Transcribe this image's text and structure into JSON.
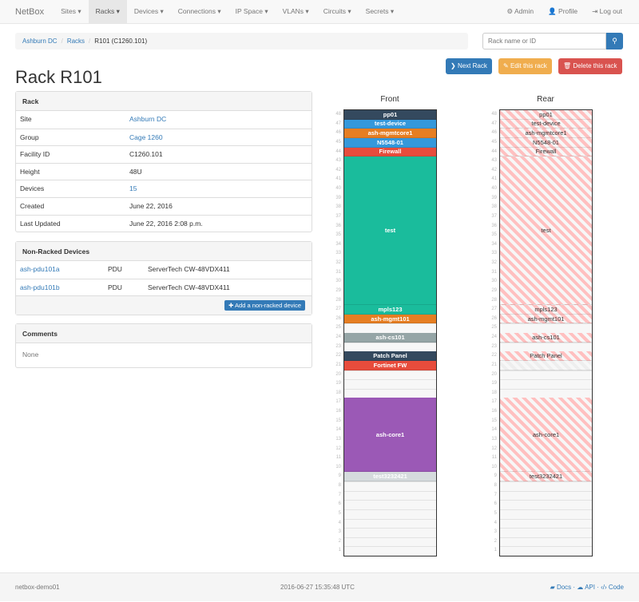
{
  "nav": {
    "brand": "NetBox",
    "items": [
      "Sites ▾",
      "Racks ▾",
      "Devices ▾",
      "Connections ▾",
      "IP Space ▾",
      "VLANs ▾",
      "Circuits ▾",
      "Secrets ▾"
    ],
    "active": 1,
    "admin": "Admin",
    "profile": "Profile",
    "logout": "Log out"
  },
  "breadcrumb": [
    "Ashburn DC",
    "Racks",
    "R101 (C1260.101)"
  ],
  "search": {
    "placeholder": "Rack name or ID"
  },
  "buttons": {
    "next": "Next Rack",
    "edit": "Edit this rack",
    "delete": "Delete this rack"
  },
  "colors": {
    "primary": "#337ab7",
    "warning": "#f0ad4e",
    "danger": "#d9534f"
  },
  "title": "Rack R101",
  "rack_panel": {
    "heading": "Rack",
    "rows": [
      {
        "label": "Site",
        "value": "Ashburn DC",
        "link": true
      },
      {
        "label": "Group",
        "value": "Cage 1260",
        "link": true
      },
      {
        "label": "Facility ID",
        "value": "C1260.101",
        "link": false
      },
      {
        "label": "Height",
        "value": "48U",
        "link": false
      },
      {
        "label": "Devices",
        "value": "15",
        "link": true
      },
      {
        "label": "Created",
        "value": "June 22, 2016",
        "link": false
      },
      {
        "label": "Last Updated",
        "value": "June 22, 2016 2:08 p.m.",
        "link": false
      }
    ]
  },
  "nonracked": {
    "heading": "Non-Racked Devices",
    "rows": [
      {
        "name": "ash-pdu101a",
        "role": "PDU",
        "type": "ServerTech CW-48VDX411"
      },
      {
        "name": "ash-pdu101b",
        "role": "PDU",
        "type": "ServerTech CW-48VDX411"
      }
    ],
    "add_label": "Add a non-racked device"
  },
  "comments": {
    "heading": "Comments",
    "body": "None"
  },
  "rack": {
    "front_label": "Front",
    "rear_label": "Rear",
    "units": 48,
    "devices": [
      {
        "name": "pp01",
        "top": 48,
        "height": 1,
        "color": "#34495e",
        "rear": true
      },
      {
        "name": "test-device",
        "top": 47,
        "height": 1,
        "color": "#3498db",
        "rear": true
      },
      {
        "name": "ash-mgmtcore1",
        "top": 46,
        "height": 1,
        "color": "#e67e22",
        "rear": true
      },
      {
        "name": "N5548-01",
        "top": 45,
        "height": 1,
        "color": "#3498db",
        "rear": true
      },
      {
        "name": "Firewall",
        "top": 44,
        "height": 1,
        "color": "#e74c3c",
        "rear": true
      },
      {
        "name": "test",
        "top": 43,
        "height": 16,
        "color": "#1abc9c",
        "rear": true
      },
      {
        "name": "mpls123",
        "top": 27,
        "height": 1,
        "color": "#1abc9c",
        "rear": true
      },
      {
        "name": "ash-mgmt101",
        "top": 26,
        "height": 1,
        "color": "#e67e22",
        "rear": true
      },
      {
        "name": "ash-cs101",
        "top": 24,
        "height": 1,
        "color": "#95a5a6",
        "rear": true
      },
      {
        "name": "Patch Panel",
        "top": 22,
        "height": 1,
        "color": "#34495e",
        "rear": true
      },
      {
        "name": "Fortinet FW",
        "top": 21,
        "height": 1,
        "color": "#e74c3c",
        "rear": "blocked"
      },
      {
        "name": "ash-core1",
        "top": 17,
        "height": 8,
        "color": "#9b59b6",
        "rear": true
      },
      {
        "name": "test3232421",
        "top": 9,
        "height": 1,
        "color": "#d5dbdd",
        "rear": true
      }
    ]
  },
  "footer": {
    "host": "netbox-demo01",
    "time": "2016-06-27 15:35:48 UTC",
    "docs": "Docs",
    "api": "API",
    "code": "Code"
  }
}
